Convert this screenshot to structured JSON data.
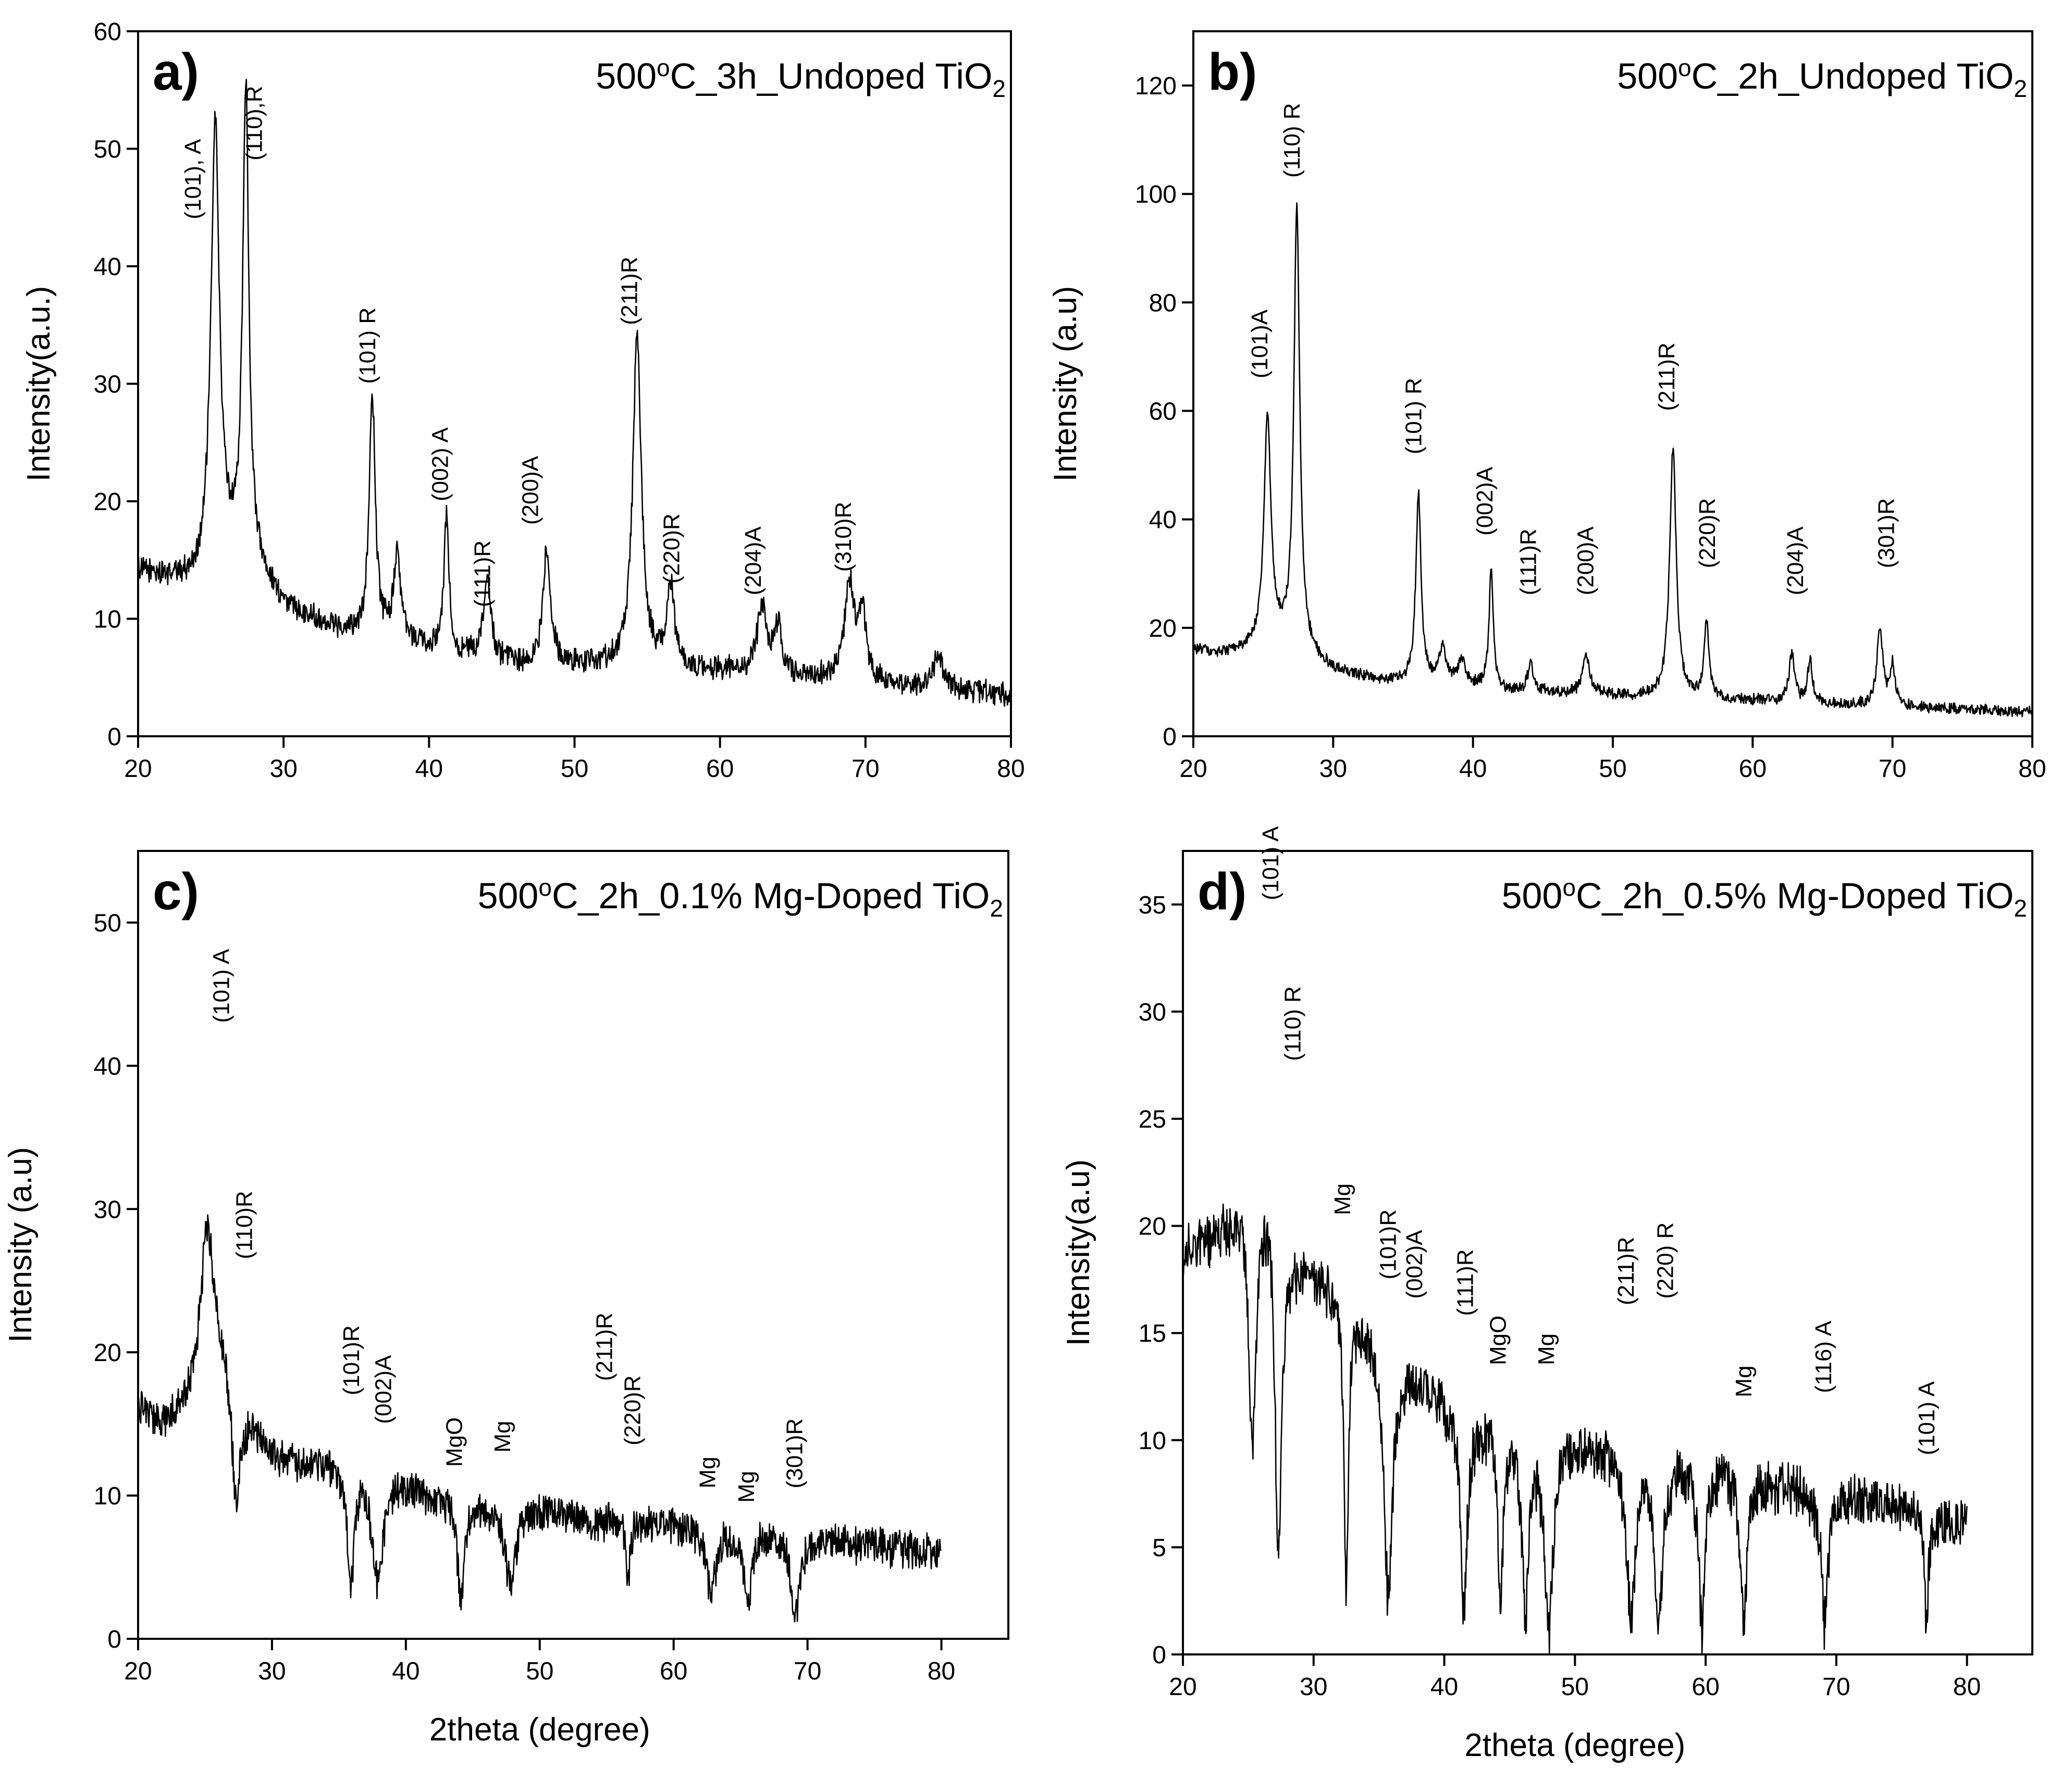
{
  "chart_data": [
    {
      "type": "line",
      "panel_label": "a)",
      "title": "500",
      "title_sup": "o",
      "title_mid": "C_3h_Undoped TiO",
      "title_sub": "2",
      "xlabel": "",
      "ylabel": "Intensity(a.u.)",
      "xlim": [
        20,
        80
      ],
      "ylim": [
        0,
        60
      ],
      "xticks": [
        "20",
        "30",
        "40",
        "50",
        "60",
        "70",
        "80"
      ],
      "yticks": [
        "0",
        "10",
        "20",
        "30",
        "40",
        "50",
        "60"
      ],
      "baseline": [
        [
          20,
          14
        ],
        [
          22,
          13.5
        ],
        [
          24,
          13
        ],
        [
          26,
          15
        ],
        [
          28,
          14.5
        ],
        [
          30,
          11
        ],
        [
          32,
          10
        ],
        [
          34,
          9
        ],
        [
          36,
          8.5
        ],
        [
          38,
          8
        ],
        [
          40,
          7.5
        ],
        [
          42,
          7
        ],
        [
          44,
          6.5
        ],
        [
          46,
          6
        ],
        [
          50,
          6
        ],
        [
          55,
          6
        ],
        [
          60,
          5.5
        ],
        [
          65,
          5
        ],
        [
          70,
          4.5
        ],
        [
          75,
          4
        ],
        [
          80,
          3.5
        ]
      ],
      "peaks": [
        [
          25.3,
          52,
          0.35
        ],
        [
          27.4,
          55,
          0.25
        ],
        [
          36.1,
          29,
          0.25
        ],
        [
          37.8,
          15,
          0.3
        ],
        [
          41.2,
          19,
          0.2
        ],
        [
          44,
          13,
          0.3
        ],
        [
          48.1,
          16,
          0.3
        ],
        [
          54.3,
          34,
          0.35
        ],
        [
          56.6,
          12.5,
          0.3
        ],
        [
          62.9,
          11,
          0.4
        ],
        [
          64,
          9,
          0.3
        ],
        [
          68.9,
          13,
          0.4
        ],
        [
          69.8,
          10,
          0.3
        ],
        [
          75,
          7,
          0.4
        ]
      ],
      "noise": 1.2,
      "annotations": [
        {
          "text": "(101), A",
          "x": 24.3,
          "y": 44
        },
        {
          "text": "(110),R",
          "x": 28.5,
          "y": 49
        },
        {
          "text": "(101) R",
          "x": 36.3,
          "y": 30
        },
        {
          "text": "(002) A",
          "x": 41.3,
          "y": 20
        },
        {
          "text": "(111)R",
          "x": 44.2,
          "y": 11
        },
        {
          "text": "(200)A",
          "x": 47.5,
          "y": 18
        },
        {
          "text": "(211)R",
          "x": 54.3,
          "y": 35
        },
        {
          "text": "(220)R",
          "x": 57.2,
          "y": 13
        },
        {
          "text": "(204)A",
          "x": 62.8,
          "y": 12
        },
        {
          "text": "(310)R",
          "x": 69,
          "y": 14
        }
      ]
    },
    {
      "type": "line",
      "panel_label": "b)",
      "title": "500",
      "title_sup": "o",
      "title_mid": "C_2h_Undoped TiO",
      "title_sub": "2",
      "xlabel": "",
      "ylabel": "Intensity (a.u)",
      "xlim": [
        20,
        80
      ],
      "ylim": [
        0,
        130
      ],
      "xticks": [
        "20",
        "30",
        "40",
        "50",
        "60",
        "70",
        "80"
      ],
      "yticks": [
        "0",
        "20",
        "40",
        "60",
        "80",
        "100",
        "120"
      ],
      "baseline": [
        [
          20,
          16
        ],
        [
          22,
          15
        ],
        [
          24,
          16
        ],
        [
          26,
          17
        ],
        [
          28,
          15
        ],
        [
          30,
          12
        ],
        [
          34,
          10
        ],
        [
          38,
          10
        ],
        [
          42,
          8.5
        ],
        [
          46,
          8
        ],
        [
          50,
          7.5
        ],
        [
          55,
          7
        ],
        [
          60,
          6.5
        ],
        [
          65,
          6
        ],
        [
          70,
          5.5
        ],
        [
          75,
          5
        ],
        [
          80,
          4.5
        ]
      ],
      "peaks": [
        [
          25.3,
          58,
          0.3
        ],
        [
          27.4,
          97,
          0.25
        ],
        [
          36.1,
          45,
          0.22
        ],
        [
          37.8,
          16,
          0.3
        ],
        [
          39.2,
          14,
          0.3
        ],
        [
          41.3,
          31,
          0.18
        ],
        [
          44.1,
          14,
          0.2
        ],
        [
          48.1,
          15,
          0.3
        ],
        [
          54.3,
          53,
          0.28
        ],
        [
          56.7,
          21,
          0.2
        ],
        [
          62.8,
          15,
          0.25
        ],
        [
          64.1,
          14,
          0.2
        ],
        [
          69.1,
          20,
          0.25
        ],
        [
          70,
          13,
          0.2
        ]
      ],
      "noise": 1.2,
      "annotations": [
        {
          "text": "(101)A",
          "x": 25.3,
          "y": 66
        },
        {
          "text": "(110) R",
          "x": 27.6,
          "y": 103
        },
        {
          "text": "(101) R",
          "x": 36.3,
          "y": 52
        },
        {
          "text": "(002)A",
          "x": 41.4,
          "y": 37
        },
        {
          "text": "(111)R",
          "x": 44.5,
          "y": 26
        },
        {
          "text": "(200)A",
          "x": 48.6,
          "y": 26
        },
        {
          "text": "(211)R",
          "x": 54.4,
          "y": 60
        },
        {
          "text": "(220)R",
          "x": 57.3,
          "y": 31
        },
        {
          "text": "(204)A",
          "x": 63.6,
          "y": 26
        },
        {
          "text": "(301)R",
          "x": 70.1,
          "y": 31
        }
      ]
    },
    {
      "type": "line",
      "panel_label": "c)",
      "title": "500",
      "title_sup": "o",
      "title_mid": "C_2h_0.1% Mg-Doped TiO",
      "title_sub": "2",
      "xlabel": "2theta (degree)",
      "ylabel": "Intensity (a.u)",
      "xlim": [
        20,
        85
      ],
      "ylim": [
        0,
        55
      ],
      "xticks": [
        "20",
        "30",
        "40",
        "50",
        "60",
        "70",
        "80"
      ],
      "yticks": [
        "0",
        "10",
        "20",
        "30",
        "40",
        "50"
      ],
      "baseline": [
        [
          20,
          16
        ],
        [
          22,
          15
        ],
        [
          24,
          17
        ],
        [
          25,
          20
        ],
        [
          27,
          19
        ],
        [
          28,
          16
        ],
        [
          30,
          13
        ],
        [
          32,
          12.5
        ],
        [
          35,
          12
        ],
        [
          38,
          12
        ],
        [
          40,
          11
        ],
        [
          42,
          10
        ],
        [
          45,
          9.5
        ],
        [
          50,
          9
        ],
        [
          55,
          8.5
        ],
        [
          60,
          8
        ],
        [
          65,
          7.5
        ],
        [
          70,
          7
        ],
        [
          75,
          6.5
        ],
        [
          80,
          6
        ]
      ],
      "peaks": [
        [
          25.2,
          29,
          0.6
        ],
        [
          27.3,
          9,
          0.4
        ],
        [
          35.9,
          4,
          0.3
        ],
        [
          37.9,
          4,
          0.5
        ],
        [
          44.1,
          3,
          0.3
        ],
        [
          47.8,
          4,
          0.5
        ],
        [
          54.2,
          8,
          0.5
        ],
        [
          56.6,
          4,
          0.2
        ],
        [
          62.8,
          3,
          0.4
        ],
        [
          65.5,
          2,
          0.3
        ],
        [
          69.1,
          2,
          0.4
        ]
      ],
      "noise": 1.5,
      "annotations": [
        {
          "text": "(101) A",
          "x": 26.8,
          "y": 43
        },
        {
          "text": "(110)R",
          "x": 28.5,
          "y": 26.5
        },
        {
          "text": "(101)R",
          "x": 36.5,
          "y": 17
        },
        {
          "text": "(002)A",
          "x": 38.9,
          "y": 15
        },
        {
          "text": "MgO",
          "x": 44.2,
          "y": 12
        },
        {
          "text": "Mg",
          "x": 47.8,
          "y": 13
        },
        {
          "text": "(211)R",
          "x": 55.4,
          "y": 18
        },
        {
          "text": "(220)R",
          "x": 57.5,
          "y": 13.5
        },
        {
          "text": "Mg",
          "x": 63.1,
          "y": 10.5
        },
        {
          "text": "Mg",
          "x": 66,
          "y": 9.5
        },
        {
          "text": "(301)R",
          "x": 69.6,
          "y": 10.5
        }
      ]
    },
    {
      "type": "line",
      "panel_label": "d)",
      "title": "500",
      "title_sup": "o",
      "title_mid": "C_2h_0.5% Mg-Doped TiO",
      "title_sub": "2",
      "xlabel": "2theta (degree)",
      "ylabel": "Intensity(a.u)",
      "xlim": [
        20,
        85
      ],
      "ylim": [
        0,
        37.5
      ],
      "xticks": [
        "20",
        "30",
        "40",
        "50",
        "60",
        "70",
        "80"
      ],
      "yticks": [
        "0",
        "5",
        "10",
        "15",
        "20",
        "25",
        "30",
        "35"
      ],
      "baseline": [
        [
          20,
          19
        ],
        [
          22,
          19.5
        ],
        [
          24,
          21
        ],
        [
          25,
          24
        ],
        [
          27,
          22
        ],
        [
          28,
          19
        ],
        [
          30,
          18
        ],
        [
          32,
          17
        ],
        [
          34,
          15.5
        ],
        [
          36,
          14
        ],
        [
          38,
          13
        ],
        [
          40,
          12
        ],
        [
          42,
          11
        ],
        [
          45,
          10.5
        ],
        [
          48,
          10.5
        ],
        [
          50,
          10
        ],
        [
          55,
          9.5
        ],
        [
          60,
          9
        ],
        [
          65,
          8
        ],
        [
          70,
          7.5
        ],
        [
          75,
          7
        ],
        [
          80,
          6
        ]
      ],
      "peaks": [
        [
          25.3,
          10,
          0.4
        ],
        [
          27.3,
          5,
          0.3
        ],
        [
          32.5,
          3,
          0.2
        ],
        [
          35.7,
          3,
          0.4
        ],
        [
          41.5,
          2,
          0.3
        ],
        [
          44.3,
          2,
          0.2
        ],
        [
          46.2,
          2,
          0.3
        ],
        [
          48,
          1.5,
          0.4
        ],
        [
          54.3,
          2,
          0.4
        ],
        [
          56.4,
          2,
          0.4
        ],
        [
          59.7,
          1.5,
          0.3
        ],
        [
          62.9,
          1.5,
          0.3
        ],
        [
          69.1,
          1.5,
          0.3
        ],
        [
          76.9,
          1.8,
          0.2
        ]
      ],
      "noise": 1.4,
      "annotations": [
        {
          "text": "(101) A",
          "x": 27.3,
          "y": 35.2
        },
        {
          "text": "(110) R",
          "x": 29,
          "y": 27.7
        },
        {
          "text": "Mg",
          "x": 32.8,
          "y": 20.5
        },
        {
          "text": "(101)R",
          "x": 36.3,
          "y": 17.5
        },
        {
          "text": "(002)A",
          "x": 38.3,
          "y": 16.6
        },
        {
          "text": "(111)R",
          "x": 42.2,
          "y": 15.8
        },
        {
          "text": "MgO",
          "x": 44.7,
          "y": 13.5
        },
        {
          "text": "Mg",
          "x": 48.4,
          "y": 13.5
        },
        {
          "text": "(211)R",
          "x": 54.5,
          "y": 16.3
        },
        {
          "text": "(220) R",
          "x": 57.5,
          "y": 16.6
        },
        {
          "text": "Mg",
          "x": 63.5,
          "y": 12
        },
        {
          "text": "(116) A",
          "x": 69.6,
          "y": 12.2
        },
        {
          "text": "(101) A",
          "x": 77.5,
          "y": 9.3
        }
      ]
    }
  ]
}
